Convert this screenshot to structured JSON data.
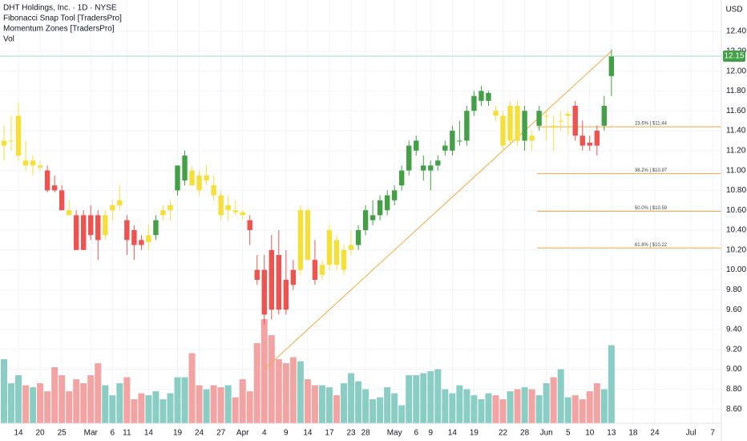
{
  "chart_data": {
    "type": "candlestick",
    "title": "DHT Holdings, Inc. · 1D · NYSE",
    "indicators": [
      "Fibonacci Snap Tool [TradersPro]",
      "Momentum Zones [TradersPro]",
      "Vol"
    ],
    "currency": "USD",
    "last_price": 12.15,
    "open": [
      11.25,
      11.3,
      11.15,
      11.1,
      11.05,
      11.05,
      11.0,
      10.85,
      10.8,
      10.6,
      10.55,
      10.55,
      10.55,
      10.55,
      10.35,
      10.6,
      10.65,
      10.5,
      10.4,
      10.3,
      10.28,
      10.35,
      10.55,
      10.6,
      10.8,
      10.9,
      11.0,
      10.95,
      10.9,
      10.85,
      10.75,
      10.6,
      10.6,
      10.58,
      10.5,
      10.0,
      10.0,
      10.2,
      10.15,
      9.9,
      10.0,
      10.0,
      10.6,
      10.1,
      9.95,
      10.05,
      10.3,
      10.0,
      10.2,
      10.25,
      10.4,
      10.5,
      10.55,
      10.6,
      10.7,
      10.85,
      11.0,
      11.2,
      11.0,
      11.0,
      11.05,
      11.2,
      11.2,
      11.3,
      11.3,
      11.6,
      11.7,
      11.7,
      11.6,
      11.55,
      11.3,
      11.65,
      11.3,
      11.35,
      11.45,
      11.55,
      11.45,
      11.5,
      11.55,
      11.65,
      11.35,
      11.28,
      11.4,
      11.45,
      11.95
    ],
    "high": [
      11.45,
      11.55,
      11.68,
      11.3,
      11.15,
      11.1,
      11.05,
      10.95,
      10.85,
      10.7,
      10.6,
      10.6,
      10.65,
      10.6,
      10.6,
      10.7,
      10.85,
      10.55,
      10.45,
      10.35,
      10.45,
      10.55,
      10.65,
      10.7,
      11.05,
      11.2,
      11.05,
      11.0,
      11.05,
      10.95,
      10.8,
      10.75,
      10.7,
      10.6,
      10.55,
      10.15,
      10.15,
      10.35,
      10.4,
      10.2,
      10.1,
      10.65,
      10.62,
      10.3,
      10.1,
      10.45,
      10.35,
      10.25,
      10.4,
      10.45,
      10.65,
      10.7,
      10.75,
      10.8,
      10.85,
      11.05,
      11.3,
      11.35,
      11.15,
      11.1,
      11.15,
      11.3,
      11.45,
      11.5,
      11.65,
      11.8,
      11.85,
      11.8,
      11.65,
      11.6,
      11.7,
      11.7,
      11.65,
      11.4,
      11.65,
      11.6,
      11.55,
      11.6,
      11.6,
      11.7,
      11.5,
      11.35,
      11.45,
      11.75,
      12.22
    ],
    "low": [
      11.1,
      11.2,
      11.1,
      11.0,
      10.95,
      11.0,
      10.78,
      10.78,
      10.6,
      10.55,
      10.2,
      10.2,
      10.3,
      10.1,
      10.3,
      10.5,
      10.6,
      10.15,
      10.1,
      10.2,
      10.2,
      10.3,
      10.5,
      10.5,
      10.75,
      10.85,
      10.85,
      10.75,
      10.85,
      10.7,
      10.5,
      10.5,
      10.55,
      10.5,
      10.25,
      9.85,
      9.45,
      9.5,
      9.55,
      9.55,
      9.8,
      9.95,
      10.1,
      9.85,
      9.9,
      10.0,
      10.0,
      9.95,
      10.15,
      10.2,
      10.35,
      10.45,
      10.5,
      10.55,
      10.65,
      10.8,
      10.95,
      11.15,
      10.9,
      10.8,
      11.0,
      11.15,
      11.15,
      11.25,
      11.25,
      11.55,
      11.65,
      11.65,
      11.5,
      11.2,
      11.25,
      11.25,
      11.2,
      11.2,
      11.4,
      11.3,
      11.2,
      11.4,
      11.35,
      11.3,
      11.2,
      11.2,
      11.15,
      11.4,
      11.75
    ],
    "close": [
      11.3,
      11.3,
      11.55,
      11.05,
      11.1,
      11.03,
      10.8,
      10.8,
      10.6,
      10.55,
      10.2,
      10.2,
      10.35,
      10.3,
      10.55,
      10.65,
      10.7,
      10.3,
      10.25,
      10.25,
      10.35,
      10.5,
      10.6,
      10.65,
      11.05,
      11.15,
      10.85,
      10.8,
      10.95,
      10.75,
      10.55,
      10.65,
      10.58,
      10.55,
      10.4,
      9.9,
      9.55,
      9.6,
      9.6,
      9.6,
      9.85,
      10.6,
      10.1,
      9.9,
      10.05,
      10.4,
      10.05,
      10.2,
      10.25,
      10.4,
      10.6,
      10.55,
      10.7,
      10.75,
      10.8,
      11.0,
      11.25,
      11.3,
      11.05,
      11.05,
      11.1,
      11.25,
      11.4,
      11.3,
      11.6,
      11.75,
      11.8,
      11.78,
      11.55,
      11.25,
      11.65,
      11.3,
      11.6,
      11.3,
      11.6,
      11.55,
      11.43,
      11.5,
      11.57,
      11.35,
      11.25,
      11.25,
      11.25,
      11.65,
      12.15
    ],
    "volume": [
      1.6,
      1.0,
      1.2,
      0.95,
      0.9,
      1.0,
      0.8,
      1.4,
      1.2,
      0.8,
      1.1,
      1.0,
      1.2,
      1.5,
      0.95,
      0.7,
      1.0,
      1.15,
      0.6,
      0.75,
      0.7,
      0.8,
      0.6,
      0.75,
      1.15,
      1.15,
      1.75,
      0.95,
      0.85,
      0.95,
      0.9,
      0.95,
      0.65,
      1.1,
      0.8,
      2.0,
      2.6,
      2.2,
      1.6,
      1.5,
      1.65,
      1.55,
      1.1,
      0.95,
      0.95,
      0.9,
      0.7,
      1.0,
      1.25,
      1.05,
      0.85,
      0.6,
      0.65,
      0.9,
      0.75,
      0.45,
      1.2,
      1.2,
      1.25,
      1.3,
      1.35,
      0.85,
      0.75,
      0.95,
      0.85,
      0.7,
      0.6,
      0.75,
      0.7,
      0.6,
      0.8,
      0.85,
      0.9,
      0.85,
      0.7,
      1.0,
      1.15,
      1.35,
      0.65,
      0.7,
      0.6,
      0.8,
      1.0,
      0.85,
      1.95
    ],
    "colors": [
      "#f5e03a",
      "#f5e03a",
      "#f5e03a",
      "#f5e03a",
      "#f5e03a",
      "#f5e03a",
      "#ef5350",
      "#ef5350",
      "#ef5350",
      "#f5e03a",
      "#ef5350",
      "#ef5350",
      "#ef5350",
      "#ef5350",
      "#f5e03a",
      "#f5e03a",
      "#f5e03a",
      "#ef5350",
      "#ef5350",
      "#ef5350",
      "#f5e03a",
      "#43a047",
      "#f5e03a",
      "#f5e03a",
      "#43a047",
      "#43a047",
      "#f5e03a",
      "#f5e03a",
      "#f5e03a",
      "#f5e03a",
      "#f5e03a",
      "#f5e03a",
      "#f5e03a",
      "#f5e03a",
      "#ef5350",
      "#ef5350",
      "#ef5350",
      "#ef5350",
      "#ef5350",
      "#ef5350",
      "#ef5350",
      "#f5e03a",
      "#f5e03a",
      "#ef5350",
      "#f5e03a",
      "#f5e03a",
      "#f5e03a",
      "#f5e03a",
      "#f5e03a",
      "#43a047",
      "#43a047",
      "#43a047",
      "#43a047",
      "#43a047",
      "#43a047",
      "#43a047",
      "#43a047",
      "#43a047",
      "#43a047",
      "#43a047",
      "#43a047",
      "#43a047",
      "#43a047",
      "#43a047",
      "#43a047",
      "#43a047",
      "#43a047",
      "#43a047",
      "#f5e03a",
      "#f5e03a",
      "#f5e03a",
      "#f5e03a",
      "#43a047",
      "#f5e03a",
      "#43a047",
      "#f5e03a",
      "#f5e03a",
      "#f5e03a",
      "#f5e03a",
      "#ef5350",
      "#ef5350",
      "#ef5350",
      "#ef5350",
      "#43a047",
      "#43a047"
    ],
    "volume_up_color": "#89cdc4",
    "volume_down_color": "#f4a3a3",
    "ylim": [
      8.456,
      12.715
    ],
    "vlim": [
      0,
      8
    ],
    "xlim": [
      -0.55,
      99.2
    ],
    "yticks": [
      {
        "value": 12.4,
        "label": "12.40"
      },
      {
        "value": 12.2,
        "label": "12.20"
      },
      {
        "value": 12.0,
        "label": "12.00"
      },
      {
        "value": 11.8,
        "label": "11.80"
      },
      {
        "value": 11.6,
        "label": "11.60"
      },
      {
        "value": 11.4,
        "label": "11.40"
      },
      {
        "value": 11.2,
        "label": "11.20"
      },
      {
        "value": 11.0,
        "label": "11.00"
      },
      {
        "value": 10.8,
        "label": "10.80"
      },
      {
        "value": 10.6,
        "label": "10.60"
      },
      {
        "value": 10.4,
        "label": "10.40"
      },
      {
        "value": 10.2,
        "label": "10.20"
      },
      {
        "value": 10.0,
        "label": "10.00"
      },
      {
        "value": 9.8,
        "label": "9.80"
      },
      {
        "value": 9.6,
        "label": "9.60"
      },
      {
        "value": 9.4,
        "label": "9.40"
      },
      {
        "value": 9.2,
        "label": "9.20"
      },
      {
        "value": 9.0,
        "label": "9.00"
      },
      {
        "value": 8.8,
        "label": "8.80"
      },
      {
        "value": 8.6,
        "label": "8.60"
      }
    ],
    "xticks": [
      {
        "value": 2,
        "label": "14"
      },
      {
        "value": 5,
        "label": "20"
      },
      {
        "value": 8,
        "label": "25"
      },
      {
        "value": 12,
        "label": "Mar"
      },
      {
        "value": 15,
        "label": "6"
      },
      {
        "value": 17,
        "label": "11"
      },
      {
        "value": 20,
        "label": "14"
      },
      {
        "value": 24,
        "label": "19"
      },
      {
        "value": 27,
        "label": "24"
      },
      {
        "value": 30,
        "label": "27"
      },
      {
        "value": 33,
        "label": "Apr"
      },
      {
        "value": 36,
        "label": "4"
      },
      {
        "value": 39,
        "label": "9"
      },
      {
        "value": 42,
        "label": "14"
      },
      {
        "value": 45,
        "label": "17"
      },
      {
        "value": 48,
        "label": "23"
      },
      {
        "value": 50,
        "label": "28"
      },
      {
        "value": 54,
        "label": "May"
      },
      {
        "value": 57,
        "label": "6"
      },
      {
        "value": 59,
        "label": "9"
      },
      {
        "value": 62,
        "label": "14"
      },
      {
        "value": 65,
        "label": "19"
      },
      {
        "value": 69,
        "label": "22"
      },
      {
        "value": 72,
        "label": "28"
      },
      {
        "value": 75,
        "label": "Jun"
      },
      {
        "value": 78,
        "label": "5"
      },
      {
        "value": 81,
        "label": "10"
      },
      {
        "value": 84,
        "label": "13"
      },
      {
        "value": 87,
        "label": "18"
      },
      {
        "value": 90,
        "label": "24"
      },
      {
        "value": 95,
        "label": "Jul"
      },
      {
        "value": 98,
        "label": "7"
      }
    ],
    "fib_levels": [
      {
        "value": 11.44,
        "label": "23.6% | $11.44"
      },
      {
        "value": 10.97,
        "label": "38.2% | $10.97"
      },
      {
        "value": 10.59,
        "label": "50.0% | $10.59"
      },
      {
        "value": 10.22,
        "label": "61.8% | $10.22"
      }
    ],
    "fib_color": "#f2a93b",
    "trendline": {
      "x": [
        36,
        84
      ],
      "y": [
        9.0,
        12.2
      ],
      "color": "#f2a93b"
    },
    "last_price_color": "#43a047",
    "grid": true
  }
}
